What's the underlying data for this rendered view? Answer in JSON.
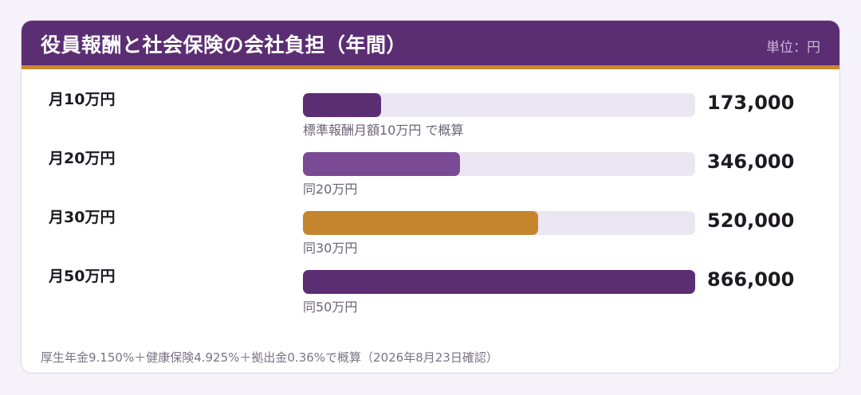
{
  "header": {
    "title": "役員報酬と社会保険の会社負担（年間）",
    "unit": "単位：円"
  },
  "chart_data": {
    "type": "bar",
    "orientation": "horizontal",
    "categories": [
      "月10万円",
      "月20万円",
      "月30万円",
      "月50万円"
    ],
    "values": [
      173000,
      346000,
      520000,
      866000
    ],
    "value_labels": [
      "173,000",
      "346,000",
      "520,000",
      "866,000"
    ],
    "notes": [
      "標準報酬月額10万円 で概算",
      "同20万円",
      "同30万円",
      "同50万円"
    ],
    "colors": [
      "#5b2d73",
      "#7b4a94",
      "#c5852c",
      "#5b2d73"
    ],
    "xlim": [
      0,
      866000
    ],
    "grid": false
  },
  "footer": {
    "text": "厚生年金9.150%＋健康保険4.925%＋拠出金0.36%で概算（2026年8月23日確認）"
  }
}
